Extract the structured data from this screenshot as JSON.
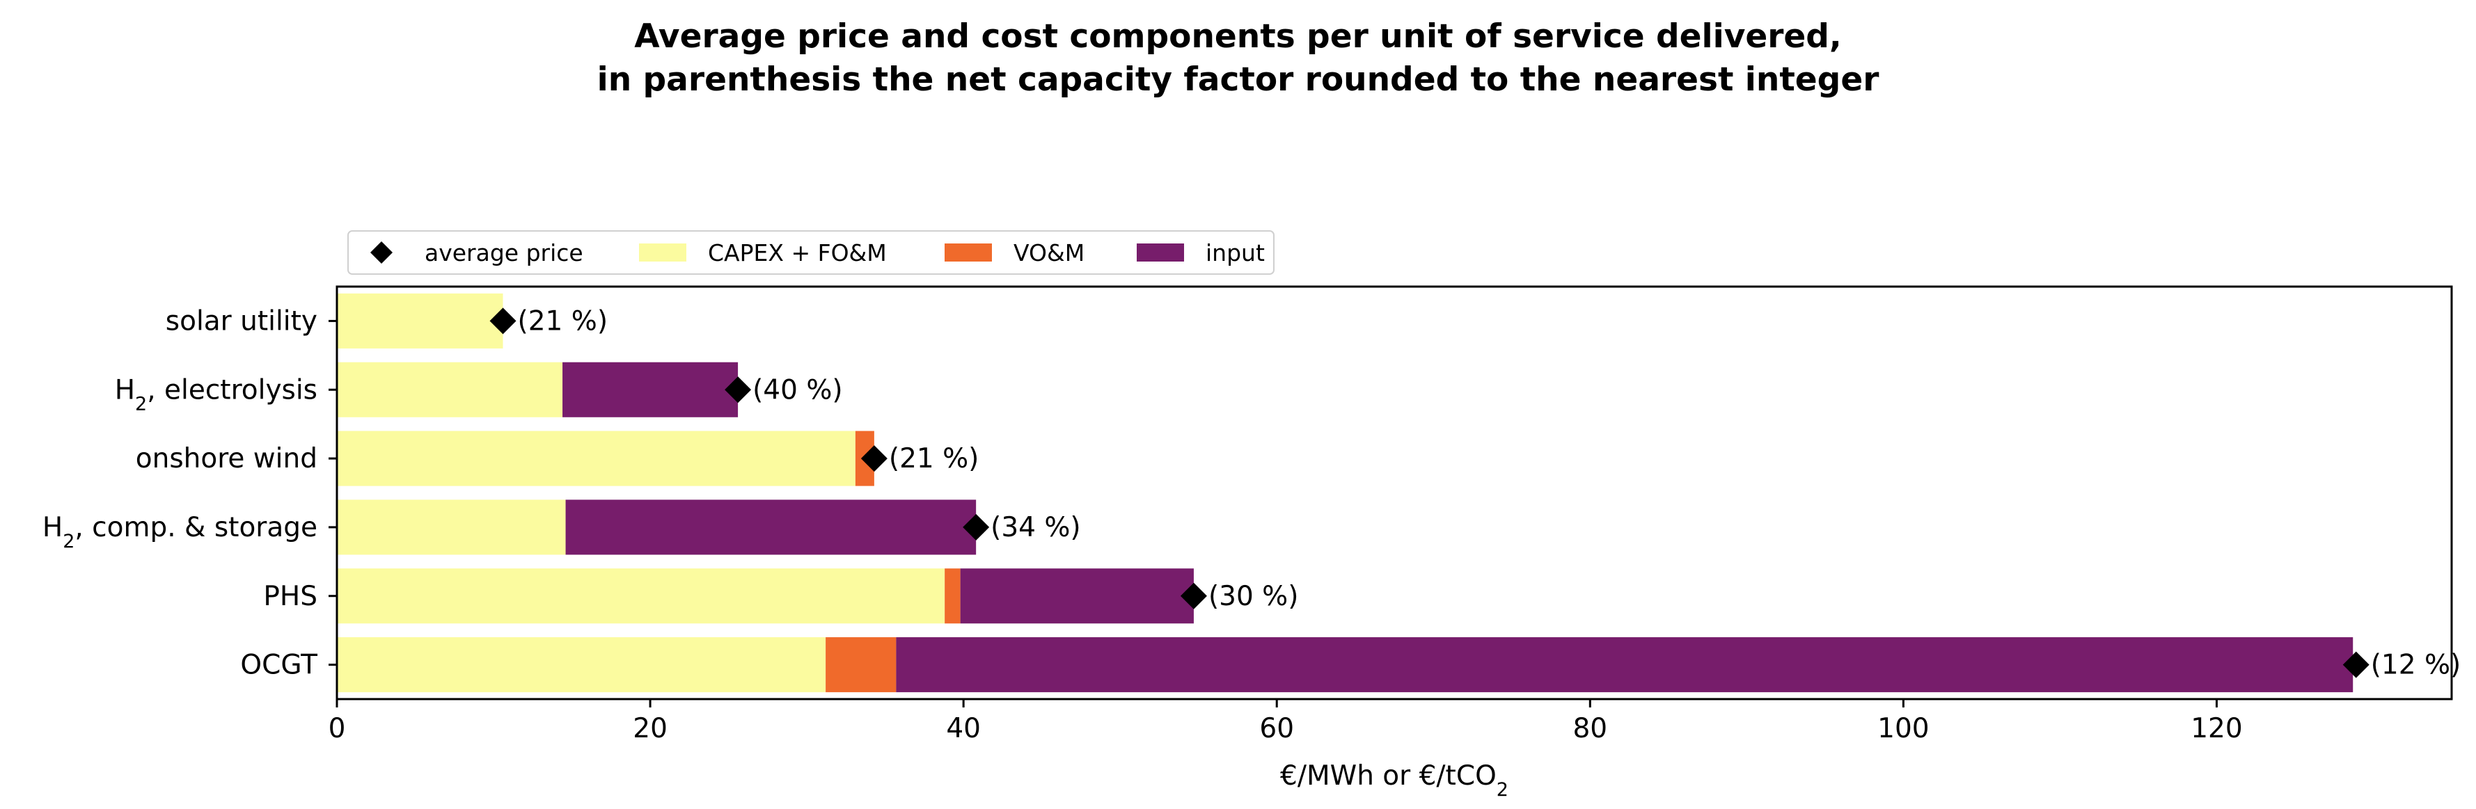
{
  "chart_data": {
    "type": "bar",
    "orientation": "horizontal",
    "stacked": true,
    "title": "Average price and cost components per unit of service delivered,",
    "subtitle": "in parenthesis the net capacity factor rounded to the nearest integer",
    "xlabel": "€/MWh or €/tCO",
    "xlabel_subscript": "2",
    "ylabel": "",
    "xlim": [
      0,
      135
    ],
    "xticks": [
      0,
      20,
      40,
      60,
      80,
      100,
      120
    ],
    "grid": false,
    "legend_placement": "top-left, outside above plot",
    "categories": [
      {
        "name": "solar utility",
        "sub": "",
        "suffix": ""
      },
      {
        "name": "H",
        "sub": "2",
        "suffix": ", electrolysis"
      },
      {
        "name": "onshore wind",
        "sub": "",
        "suffix": ""
      },
      {
        "name": "H",
        "sub": "2",
        "suffix": ", comp. & storage"
      },
      {
        "name": "PHS",
        "sub": "",
        "suffix": ""
      },
      {
        "name": "OCGT",
        "sub": "",
        "suffix": ""
      }
    ],
    "series": [
      {
        "name": "CAPEX + FO&M",
        "color": "#fbfb9f",
        "values": [
          10.6,
          14.4,
          33.1,
          14.6,
          38.8,
          31.2
        ]
      },
      {
        "name": "VO&M",
        "color": "#f06a2b",
        "values": [
          0,
          0,
          1.2,
          0,
          1.0,
          4.5
        ]
      },
      {
        "name": "input",
        "color": "#771d6b",
        "values": [
          0,
          11.2,
          0,
          26.2,
          14.9,
          93.0
        ]
      }
    ],
    "average_price": {
      "name": "average price",
      "values": [
        10.6,
        25.6,
        34.3,
        40.8,
        54.7,
        128.9
      ]
    },
    "annotations": [
      "(21 %)",
      "(40 %)",
      "(21 %)",
      "(34 %)",
      "(30 %)",
      "(12 %)"
    ]
  }
}
